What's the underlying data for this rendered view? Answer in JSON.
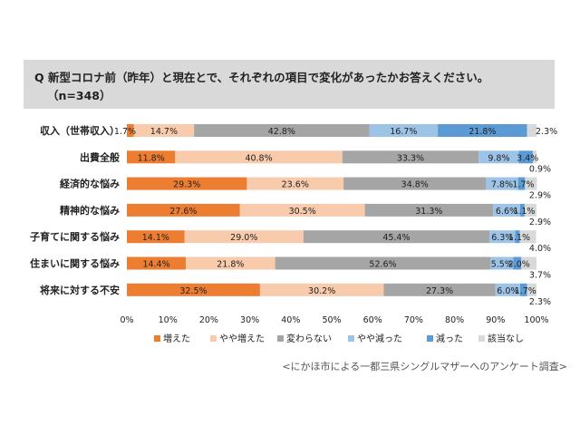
{
  "question": {
    "prefix": "Q",
    "text": "新型コロナ前（昨年）と現在とで、それぞれの項目で変化があったかお答えください。",
    "n": "（n=348）"
  },
  "source": "<にかほ市による一都三県シングルマザーへのアンケート調査>",
  "colors": {
    "増えた": "#ed7d31",
    "やや増えた": "#f8cbad",
    "変わらない": "#a5a5a5",
    "やや減った": "#9dc3e6",
    "減った": "#5b9bd5",
    "該当なし": "#d9d9d9"
  },
  "chart_data": {
    "type": "bar",
    "orientation": "horizontal-stacked-100",
    "categories": [
      "収入（世帯収入）",
      "出費全般",
      "経済的な悩み",
      "精神的な悩み",
      "子育てに関する悩み",
      "住まいに関する悩み",
      "将来に対する不安"
    ],
    "series": [
      {
        "name": "増えた",
        "values": [
          1.7,
          11.8,
          29.3,
          27.6,
          14.1,
          14.4,
          32.5
        ]
      },
      {
        "name": "やや増えた",
        "values": [
          14.7,
          40.8,
          23.6,
          30.5,
          29.0,
          21.8,
          30.2
        ]
      },
      {
        "name": "変わらない",
        "values": [
          42.8,
          33.3,
          34.8,
          31.3,
          45.4,
          52.6,
          27.3
        ]
      },
      {
        "name": "やや減った",
        "values": [
          16.7,
          9.8,
          7.8,
          6.6,
          6.3,
          5.5,
          6.0
        ]
      },
      {
        "name": "減った",
        "values": [
          21.8,
          3.4,
          1.7,
          1.1,
          1.1,
          2.0,
          1.7
        ]
      },
      {
        "name": "該当なし",
        "values": [
          2.3,
          0.9,
          2.9,
          2.9,
          4.0,
          3.7,
          2.3
        ]
      }
    ],
    "data_labels": [
      [
        "1.7%",
        "14.7%",
        "42.8%",
        "16.7%",
        "21.8%",
        "2.3%"
      ],
      [
        "11.8%",
        "40.8%",
        "33.3%",
        "9.8%",
        "3.4%",
        "0.9%"
      ],
      [
        "29.3%",
        "23.6%",
        "34.8%",
        "7.8%",
        "1.7%",
        "2.9%"
      ],
      [
        "27.6%",
        "30.5%",
        "31.3%",
        "6.6%",
        "1.1%",
        "2.9%"
      ],
      [
        "14.1%",
        "29.0%",
        "45.4%",
        "6.3%",
        "1.1%",
        "4.0%"
      ],
      [
        "14.4%",
        "21.8%",
        "52.6%",
        "5.5%",
        "2.0%",
        "3.7%"
      ],
      [
        "32.5%",
        "30.2%",
        "27.3%",
        "6.0%",
        "1.7%",
        "2.3%"
      ]
    ],
    "xlim": [
      0,
      100
    ],
    "xticks": [
      "0%",
      "10%",
      "20%",
      "30%",
      "40%",
      "50%",
      "60%",
      "70%",
      "80%",
      "90%",
      "100%"
    ],
    "legend_position": "bottom",
    "grid": false
  }
}
